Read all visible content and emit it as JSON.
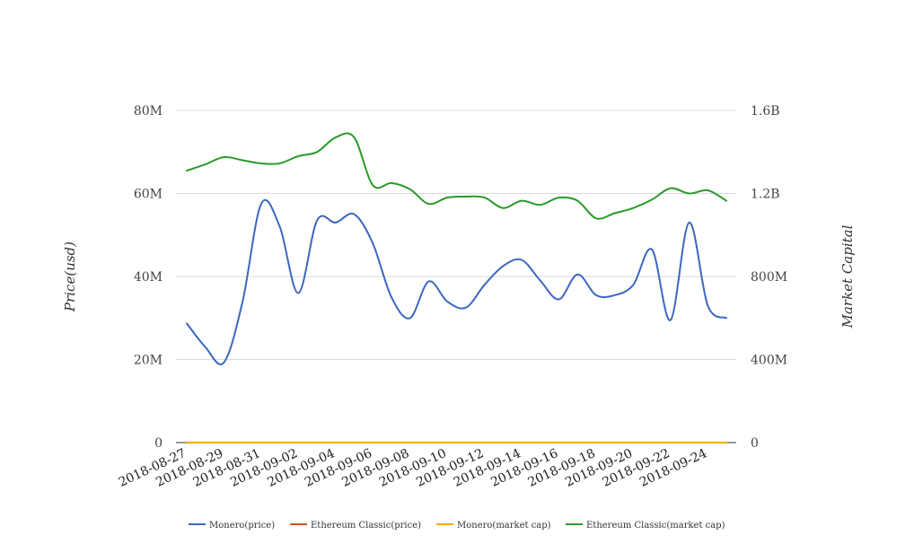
{
  "chart_data": {
    "type": "line",
    "title": "",
    "x": [
      "2018-08-27",
      "2018-08-28",
      "2018-08-29",
      "2018-08-30",
      "2018-08-31",
      "2018-09-01",
      "2018-09-02",
      "2018-09-03",
      "2018-09-04",
      "2018-09-05",
      "2018-09-06",
      "2018-09-07",
      "2018-09-08",
      "2018-09-09",
      "2018-09-10",
      "2018-09-11",
      "2018-09-12",
      "2018-09-13",
      "2018-09-14",
      "2018-09-15",
      "2018-09-16",
      "2018-09-17",
      "2018-09-18",
      "2018-09-19",
      "2018-09-20",
      "2018-09-21",
      "2018-09-22",
      "2018-09-23",
      "2018-09-24",
      "2018-09-25"
    ],
    "x_tick_labels": [
      "2018-08-27",
      "2018-08-29",
      "2018-08-31",
      "2018-09-02",
      "2018-09-04",
      "2018-09-06",
      "2018-09-08",
      "2018-09-10",
      "2018-09-12",
      "2018-09-14",
      "2018-09-16",
      "2018-09-18",
      "2018-09-20",
      "2018-09-22",
      "2018-09-24"
    ],
    "y_left": {
      "label": "Price(usd)",
      "ticks": [
        "0",
        "20M",
        "40M",
        "60M",
        "80M"
      ],
      "range": [
        0,
        80000000
      ]
    },
    "y_right": {
      "label": "Market Capital",
      "ticks": [
        "0",
        "400M",
        "800M",
        "1.2B",
        "1.6B"
      ],
      "range": [
        0,
        1600000000
      ]
    },
    "grid": true,
    "legend_position": "bottom",
    "series": [
      {
        "name": "Monero(price)",
        "axis": "left",
        "color": "#3c66c0",
        "values": [
          28700000,
          23000000,
          19300000,
          34000000,
          57500000,
          52000000,
          36000000,
          53500000,
          53000000,
          55000000,
          48000000,
          35000000,
          30000000,
          38800000,
          34000000,
          32500000,
          38000000,
          42500000,
          44000000,
          39000000,
          34500000,
          40500000,
          35500000,
          35500000,
          38000000,
          46500000,
          29500000,
          53000000,
          33000000,
          30000000
        ]
      },
      {
        "name": "Ethereum Classic(price)",
        "axis": "left",
        "color": "#d4521c",
        "values": [
          12,
          12,
          12,
          12,
          12,
          12,
          12,
          12,
          12,
          12,
          12,
          12,
          12,
          12,
          12,
          12,
          12,
          12,
          12,
          12,
          12,
          12,
          12,
          12,
          12,
          12,
          12,
          12,
          12,
          12
        ]
      },
      {
        "name": "Monero(market cap)",
        "axis": "right",
        "color": "#f4a800",
        "values": [
          0,
          0,
          0,
          0,
          0,
          0,
          0,
          0,
          0,
          0,
          0,
          0,
          0,
          0,
          0,
          0,
          0,
          0,
          0,
          0,
          0,
          0,
          0,
          0,
          0,
          0,
          0,
          0,
          0,
          0
        ]
      },
      {
        "name": "Ethereum Classic(market cap)",
        "axis": "right",
        "color": "#2a9a2a",
        "values": [
          1310000000,
          1340000000,
          1375000000,
          1360000000,
          1345000000,
          1345000000,
          1380000000,
          1400000000,
          1470000000,
          1470000000,
          1240000000,
          1250000000,
          1220000000,
          1150000000,
          1180000000,
          1185000000,
          1180000000,
          1130000000,
          1165000000,
          1145000000,
          1180000000,
          1165000000,
          1080000000,
          1105000000,
          1130000000,
          1170000000,
          1225000000,
          1200000000,
          1215000000,
          1165000000
        ]
      }
    ]
  }
}
